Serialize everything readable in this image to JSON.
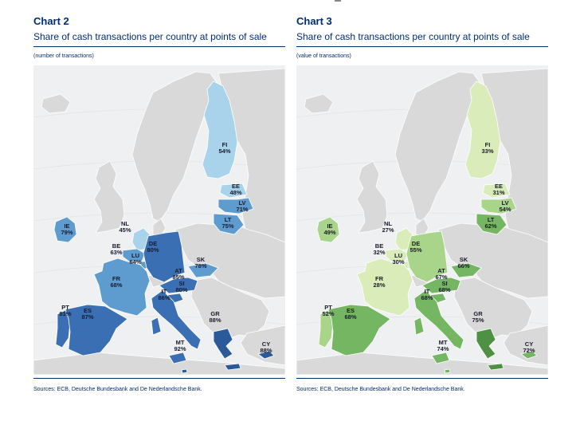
{
  "palettes": {
    "number": {
      "light": "#a9d3ea",
      "mid": "#5e9cd0",
      "dark": "#3a70b3",
      "darkest": "#2a5a9a"
    },
    "value": {
      "light": "#d9ecb9",
      "mid": "#a8d58a",
      "dark": "#74b662",
      "darkest": "#4e9142"
    }
  },
  "base_colors": {
    "sea": "#eef0f1",
    "land": "#d9d9d9",
    "border": "#ffffff"
  },
  "panels": [
    {
      "title": "Chart 2",
      "subtitle": "Share of cash transactions per country at points of sale",
      "unit": "(number of transactions)",
      "source": "Sources: ECB, Deutsche Bundesbank and De Nederlandsche Bank.",
      "palette": "number",
      "countries": [
        {
          "code": "FI",
          "value": "54%",
          "shade": "light"
        },
        {
          "code": "EE",
          "value": "48%",
          "shade": "light"
        },
        {
          "code": "LV",
          "value": "71%",
          "shade": "mid"
        },
        {
          "code": "LT",
          "value": "75%",
          "shade": "mid"
        },
        {
          "code": "NL",
          "value": "45%",
          "shade": "light"
        },
        {
          "code": "IE",
          "value": "79%",
          "shade": "mid"
        },
        {
          "code": "BE",
          "value": "63%",
          "shade": "mid"
        },
        {
          "code": "LU",
          "value": "64%",
          "shade": "mid"
        },
        {
          "code": "DE",
          "value": "80%",
          "shade": "dark"
        },
        {
          "code": "FR",
          "value": "68%",
          "shade": "mid"
        },
        {
          "code": "AT",
          "value": "85%",
          "shade": "dark"
        },
        {
          "code": "SK",
          "value": "78%",
          "shade": "mid"
        },
        {
          "code": "SI",
          "value": "80%",
          "shade": "dark"
        },
        {
          "code": "IT",
          "value": "86%",
          "shade": "dark"
        },
        {
          "code": "PT",
          "value": "81%",
          "shade": "dark"
        },
        {
          "code": "ES",
          "value": "87%",
          "shade": "dark"
        },
        {
          "code": "GR",
          "value": "88%",
          "shade": "darkest"
        },
        {
          "code": "MT",
          "value": "92%",
          "shade": "darkest"
        },
        {
          "code": "CY",
          "value": "88%",
          "shade": "darkest"
        }
      ]
    },
    {
      "title": "Chart 3",
      "subtitle": "Share of cash transactions per country at points of sale",
      "unit": "(value of transactions)",
      "source": "Sources: ECB, Deutsche Bundesbank and De Nederlandsche Bank.",
      "palette": "value",
      "countries": [
        {
          "code": "FI",
          "value": "33%",
          "shade": "light"
        },
        {
          "code": "EE",
          "value": "31%",
          "shade": "light"
        },
        {
          "code": "LV",
          "value": "54%",
          "shade": "mid"
        },
        {
          "code": "LT",
          "value": "62%",
          "shade": "dark"
        },
        {
          "code": "NL",
          "value": "27%",
          "shade": "light"
        },
        {
          "code": "IE",
          "value": "49%",
          "shade": "mid"
        },
        {
          "code": "BE",
          "value": "32%",
          "shade": "light"
        },
        {
          "code": "LU",
          "value": "30%",
          "shade": "light"
        },
        {
          "code": "DE",
          "value": "55%",
          "shade": "mid"
        },
        {
          "code": "FR",
          "value": "28%",
          "shade": "light"
        },
        {
          "code": "AT",
          "value": "67%",
          "shade": "dark"
        },
        {
          "code": "SK",
          "value": "66%",
          "shade": "dark"
        },
        {
          "code": "SI",
          "value": "68%",
          "shade": "dark"
        },
        {
          "code": "IT",
          "value": "68%",
          "shade": "dark"
        },
        {
          "code": "PT",
          "value": "52%",
          "shade": "mid"
        },
        {
          "code": "ES",
          "value": "68%",
          "shade": "dark"
        },
        {
          "code": "GR",
          "value": "75%",
          "shade": "darkest"
        },
        {
          "code": "MT",
          "value": "74%",
          "shade": "dark"
        },
        {
          "code": "CY",
          "value": "72%",
          "shade": "dark"
        }
      ]
    }
  ]
}
